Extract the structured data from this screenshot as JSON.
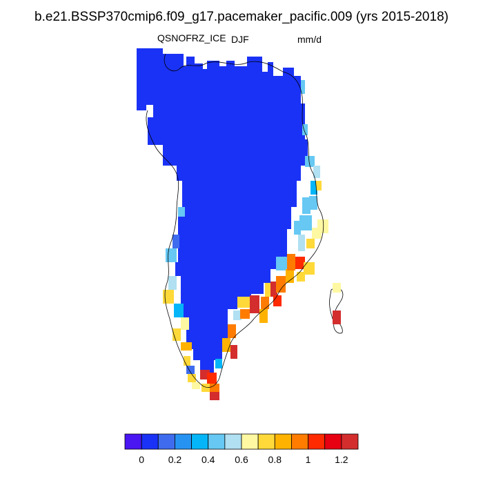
{
  "title": "b.e21.BSSP370cmip6.f09_g17.pacemaker_pacific.009 (yrs 2015-2018)",
  "variable": "QSNOFRZ_ICE",
  "season": "DJF",
  "units": "mm/d",
  "colorbar": {
    "colors": [
      "#4a16f2",
      "#1a32f5",
      "#3f6cee",
      "#2693f3",
      "#04b6f8",
      "#66c8f3",
      "#b0e0f2",
      "#fff8a2",
      "#ffd93a",
      "#ffb300",
      "#ff7c00",
      "#ff2a00",
      "#e60012",
      "#d32d2d"
    ],
    "tick_labels": [
      "0",
      "0.2",
      "0.4",
      "0.6",
      "0.8",
      "1",
      "1.2"
    ]
  },
  "map": {
    "interior_color": "#1a32f5",
    "coast_edge_cells": [
      {
        "value": 0.4,
        "color": "#3f6cee"
      },
      {
        "value": 0.45,
        "color": "#04b6f8"
      },
      {
        "value": 0.6,
        "color": "#66c8f3"
      },
      {
        "value": 0.65,
        "color": "#b0e0f2"
      },
      {
        "value": 0.7,
        "color": "#fff8a2"
      },
      {
        "value": 0.8,
        "color": "#ffd93a"
      },
      {
        "value": 0.9,
        "color": "#ffb300"
      },
      {
        "value": 1.0,
        "color": "#ff7c00"
      },
      {
        "value": 1.1,
        "color": "#ff2a00"
      },
      {
        "value": 1.3,
        "color": "#d32d2d"
      }
    ]
  }
}
